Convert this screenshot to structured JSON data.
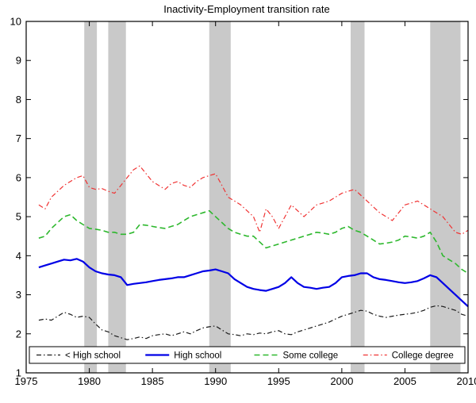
{
  "chart_data": {
    "type": "line",
    "title": "Inactivity-Employment transition rate",
    "xlabel": "",
    "ylabel": "",
    "xlim": [
      1975,
      2010
    ],
    "ylim": [
      1,
      10
    ],
    "x_ticks": [
      1975,
      1980,
      1985,
      1990,
      1995,
      2000,
      2005,
      2010
    ],
    "y_ticks": [
      1,
      2,
      3,
      4,
      5,
      6,
      7,
      8,
      9,
      10
    ],
    "grid": false,
    "legend_position": "bottom-inside",
    "band_color": "#c9c9c9",
    "axis_color": "#000000",
    "recession_bands": [
      [
        1979.6,
        1980.6
      ],
      [
        1981.5,
        1982.9
      ],
      [
        1989.5,
        1991.2
      ],
      [
        2000.7,
        2001.8
      ],
      [
        2007.0,
        2009.4
      ]
    ],
    "x": [
      1976,
      1976.5,
      1977,
      1977.5,
      1978,
      1978.5,
      1979,
      1979.5,
      1980,
      1980.5,
      1981,
      1981.5,
      1982,
      1982.5,
      1983,
      1983.5,
      1984,
      1984.5,
      1985,
      1985.5,
      1986,
      1986.5,
      1987,
      1987.5,
      1988,
      1988.5,
      1989,
      1989.5,
      1990,
      1990.5,
      1991,
      1991.5,
      1992,
      1992.5,
      1993,
      1993.5,
      1994,
      1994.5,
      1995,
      1995.5,
      1996,
      1996.5,
      1997,
      1997.5,
      1998,
      1998.5,
      1999,
      1999.5,
      2000,
      2000.5,
      2001,
      2001.5,
      2002,
      2002.5,
      2003,
      2003.5,
      2004,
      2004.5,
      2005,
      2005.5,
      2006,
      2006.5,
      2007,
      2007.5,
      2008,
      2008.5,
      2009,
      2009.5,
      2010
    ],
    "series": [
      {
        "name": "< High school",
        "color": "#1a1a1a",
        "style": "dash-dot",
        "width": 1.2,
        "values": [
          2.35,
          2.38,
          2.35,
          2.45,
          2.55,
          2.5,
          2.42,
          2.45,
          2.42,
          2.25,
          2.1,
          2.05,
          1.95,
          1.9,
          1.85,
          1.88,
          1.92,
          1.88,
          1.95,
          1.98,
          2.0,
          1.95,
          2.0,
          2.05,
          2.0,
          2.08,
          2.15,
          2.18,
          2.2,
          2.1,
          2.0,
          1.98,
          1.95,
          2.0,
          1.98,
          2.02,
          2.0,
          2.05,
          2.08,
          2.0,
          1.98,
          2.05,
          2.1,
          2.15,
          2.2,
          2.25,
          2.3,
          2.38,
          2.45,
          2.5,
          2.55,
          2.6,
          2.58,
          2.5,
          2.45,
          2.42,
          2.45,
          2.48,
          2.5,
          2.52,
          2.55,
          2.6,
          2.68,
          2.72,
          2.7,
          2.65,
          2.6,
          2.5,
          2.45
        ]
      },
      {
        "name": "High school",
        "color": "#0000e6",
        "style": "solid",
        "width": 2.2,
        "values": [
          3.7,
          3.75,
          3.8,
          3.85,
          3.9,
          3.88,
          3.92,
          3.85,
          3.7,
          3.6,
          3.55,
          3.52,
          3.5,
          3.45,
          3.25,
          3.28,
          3.3,
          3.32,
          3.35,
          3.38,
          3.4,
          3.42,
          3.45,
          3.45,
          3.5,
          3.55,
          3.6,
          3.62,
          3.65,
          3.6,
          3.55,
          3.4,
          3.3,
          3.2,
          3.15,
          3.12,
          3.1,
          3.15,
          3.2,
          3.3,
          3.45,
          3.3,
          3.2,
          3.18,
          3.15,
          3.18,
          3.2,
          3.3,
          3.45,
          3.48,
          3.5,
          3.55,
          3.55,
          3.45,
          3.4,
          3.38,
          3.35,
          3.32,
          3.3,
          3.32,
          3.35,
          3.42,
          3.5,
          3.45,
          3.3,
          3.15,
          3.0,
          2.85,
          2.7
        ]
      },
      {
        "name": "Some college",
        "color": "#2eb82e",
        "style": "dashed",
        "width": 1.6,
        "values": [
          4.45,
          4.5,
          4.7,
          4.85,
          5.0,
          5.05,
          4.9,
          4.8,
          4.7,
          4.68,
          4.65,
          4.6,
          4.6,
          4.55,
          4.55,
          4.6,
          4.8,
          4.78,
          4.75,
          4.72,
          4.7,
          4.75,
          4.8,
          4.9,
          5.0,
          5.05,
          5.1,
          5.15,
          5.0,
          4.85,
          4.7,
          4.6,
          4.55,
          4.5,
          4.5,
          4.35,
          4.2,
          4.25,
          4.3,
          4.35,
          4.4,
          4.45,
          4.5,
          4.55,
          4.6,
          4.58,
          4.55,
          4.6,
          4.7,
          4.75,
          4.65,
          4.6,
          4.5,
          4.4,
          4.3,
          4.32,
          4.35,
          4.4,
          4.5,
          4.48,
          4.45,
          4.5,
          4.6,
          4.35,
          4.0,
          3.9,
          3.8,
          3.65,
          3.55
        ]
      },
      {
        "name": "College degree",
        "color": "#f03232",
        "style": "dash-dot",
        "width": 1.2,
        "values": [
          5.3,
          5.2,
          5.5,
          5.65,
          5.8,
          5.9,
          6.0,
          6.05,
          5.75,
          5.7,
          5.72,
          5.65,
          5.6,
          5.8,
          6.0,
          6.2,
          6.3,
          6.1,
          5.9,
          5.8,
          5.7,
          5.85,
          5.9,
          5.8,
          5.75,
          5.9,
          6.0,
          6.05,
          6.1,
          5.8,
          5.5,
          5.4,
          5.3,
          5.15,
          5.0,
          4.6,
          5.2,
          5.0,
          4.7,
          5.0,
          5.3,
          5.15,
          5.0,
          5.15,
          5.3,
          5.35,
          5.4,
          5.5,
          5.6,
          5.65,
          5.7,
          5.55,
          5.4,
          5.25,
          5.1,
          5.0,
          4.9,
          5.1,
          5.3,
          5.35,
          5.4,
          5.3,
          5.2,
          5.1,
          5.0,
          4.8,
          4.6,
          4.55,
          4.65
        ]
      }
    ]
  }
}
